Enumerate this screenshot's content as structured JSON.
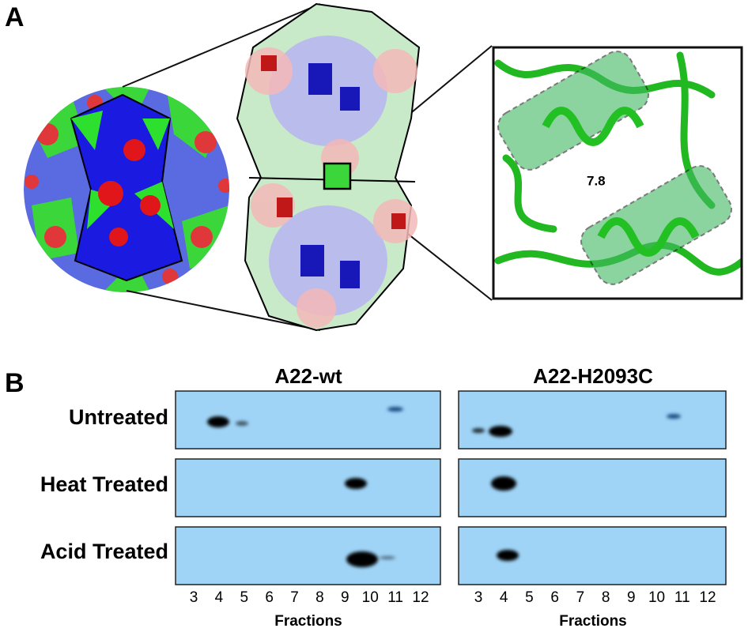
{
  "panel_a": {
    "label": "A",
    "distance_label": "7.8"
  },
  "panel_b": {
    "label": "B",
    "columns": [
      "A22-wt",
      "A22-H2093C"
    ],
    "rows": [
      "Untreated",
      "Heat Treated",
      "Acid Treated"
    ],
    "fractions": [
      3,
      4,
      5,
      6,
      7,
      8,
      9,
      10,
      11,
      12
    ],
    "x_axis_label": "Fractions"
  }
}
